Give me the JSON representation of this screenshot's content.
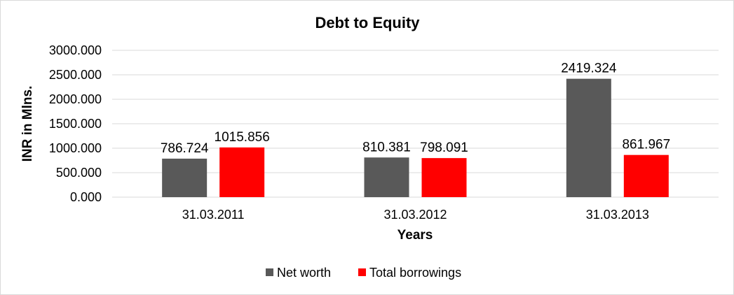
{
  "chart_data": {
    "type": "bar",
    "title": "Debt to Equity",
    "xlabel": "Years",
    "ylabel": "INR in Mlns.",
    "categories": [
      "31.03.2011",
      "31.03.2012",
      "31.03.2013"
    ],
    "series": [
      {
        "name": "Net worth",
        "color": "#595959",
        "values": [
          786.724,
          810.381,
          2419.324
        ],
        "labels": [
          "786.724",
          "810.381",
          "2419.324"
        ]
      },
      {
        "name": "Total borrowings",
        "color": "#ff0000",
        "values": [
          1015.856,
          798.091,
          861.967
        ],
        "labels": [
          "1015.856",
          "798.091",
          "861.967"
        ]
      }
    ],
    "yticks": [
      "0.000",
      "500.000",
      "1000.000",
      "1500.000",
      "2000.000",
      "2500.000",
      "3000.000"
    ],
    "ylim": [
      0,
      3000
    ],
    "grid": true,
    "legend_position": "bottom"
  }
}
